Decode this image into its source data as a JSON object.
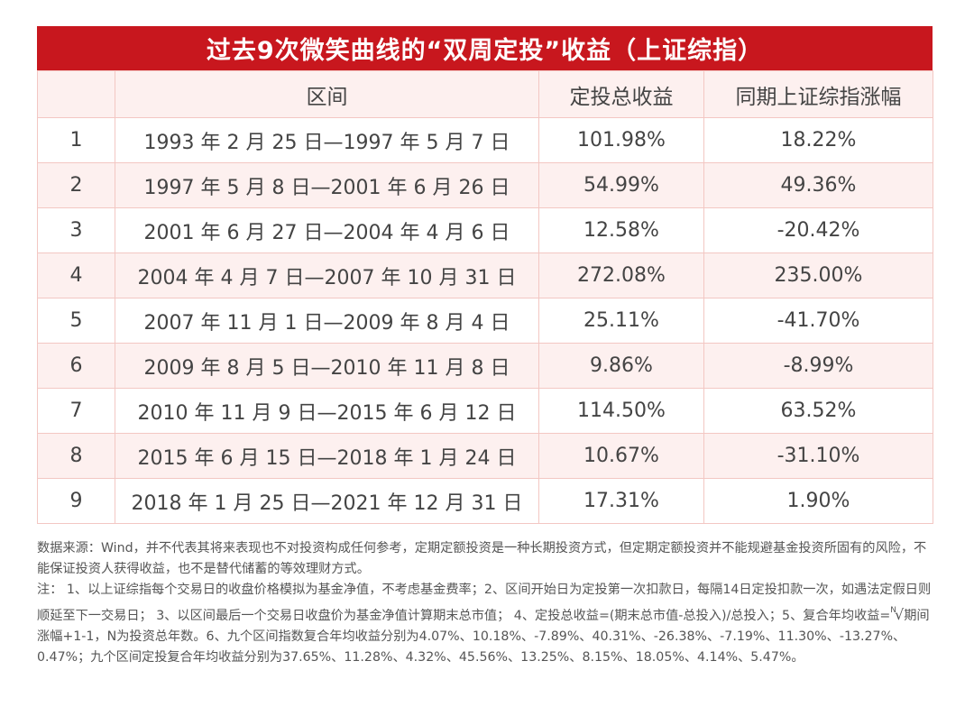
{
  "title": "过去9次微笑曲线的“双周定投”收益（上证综指）",
  "table": {
    "headers": [
      "",
      "区间",
      "定投总收益",
      "同期上证综指涨幅"
    ],
    "rows": [
      [
        "1",
        "1993 年 2 月 25 日—1997 年 5 月 7 日",
        "101.98%",
        "18.22%"
      ],
      [
        "2",
        "1997 年 5 月 8 日—2001 年 6 月 26 日",
        "54.99%",
        "49.36%"
      ],
      [
        "3",
        "2001 年 6 月 27 日—2004 年 4 月 6 日",
        "12.58%",
        "-20.42%"
      ],
      [
        "4",
        "2004 年 4 月 7 日—2007 年 10 月 31 日",
        "272.08%",
        "235.00%"
      ],
      [
        "5",
        "2007 年 11 月 1 日—2009 年 8 月 4 日",
        "25.11%",
        "-41.70%"
      ],
      [
        "6",
        "2009 年 8 月 5 日—2010 年 11 月 8 日",
        "9.86%",
        "-8.99%"
      ],
      [
        "7",
        "2010 年 11 月 9 日—2015 年 6 月 12 日",
        "114.50%",
        "63.52%"
      ],
      [
        "8",
        "2015 年 6 月 15 日—2018 年 1 月 24 日",
        "10.67%",
        "-31.10%"
      ],
      [
        "9",
        "2018 年 1 月 25 日—2021 年 12 月 31 日",
        "17.31%",
        "1.90%"
      ]
    ]
  },
  "notes": {
    "source": "数据来源：Wind，并不代表其将来表现也不对投资构成任何参考，定期定额投资是一种长期投资方式，但定期定额投资并不能规避基金投资所固有的风险，不能保证投资人获得收益，也不是替代储蓄的等效理财方式。",
    "note_a": "注： 1、以上证综指每个交易日的收盘价格模拟为基金净值，不考虑基金费率；2、区间开始日为定投第一次扣款日，每隔14日定投扣款一次，如遇法定假日则顺延至下一交易日； 3、以区间最后一个交易日收盘价为基金净值计算期末总市值； 4、定投总收益=(期末总市值-总投入)/总投入；5、复合年均收益=",
    "root_index": "N",
    "root_symbol": "√",
    "note_b": "期间涨幅+1-1，N为投资总年数。6、九个区间指数复合年均收益分别为4.07%、10.18%、-7.89%、40.31%、-26.38%、-7.19%、11.30%、-13.27%、0.47%；九个区间定投复合年均收益分别为37.65%、11.28%、4.32%、45.56%、13.25%、8.15%、18.05%、4.14%、5.47%。"
  },
  "colors": {
    "title_bg": "#c8171e",
    "row_tint": "#fdf0ef",
    "border": "#f3c7c3"
  }
}
